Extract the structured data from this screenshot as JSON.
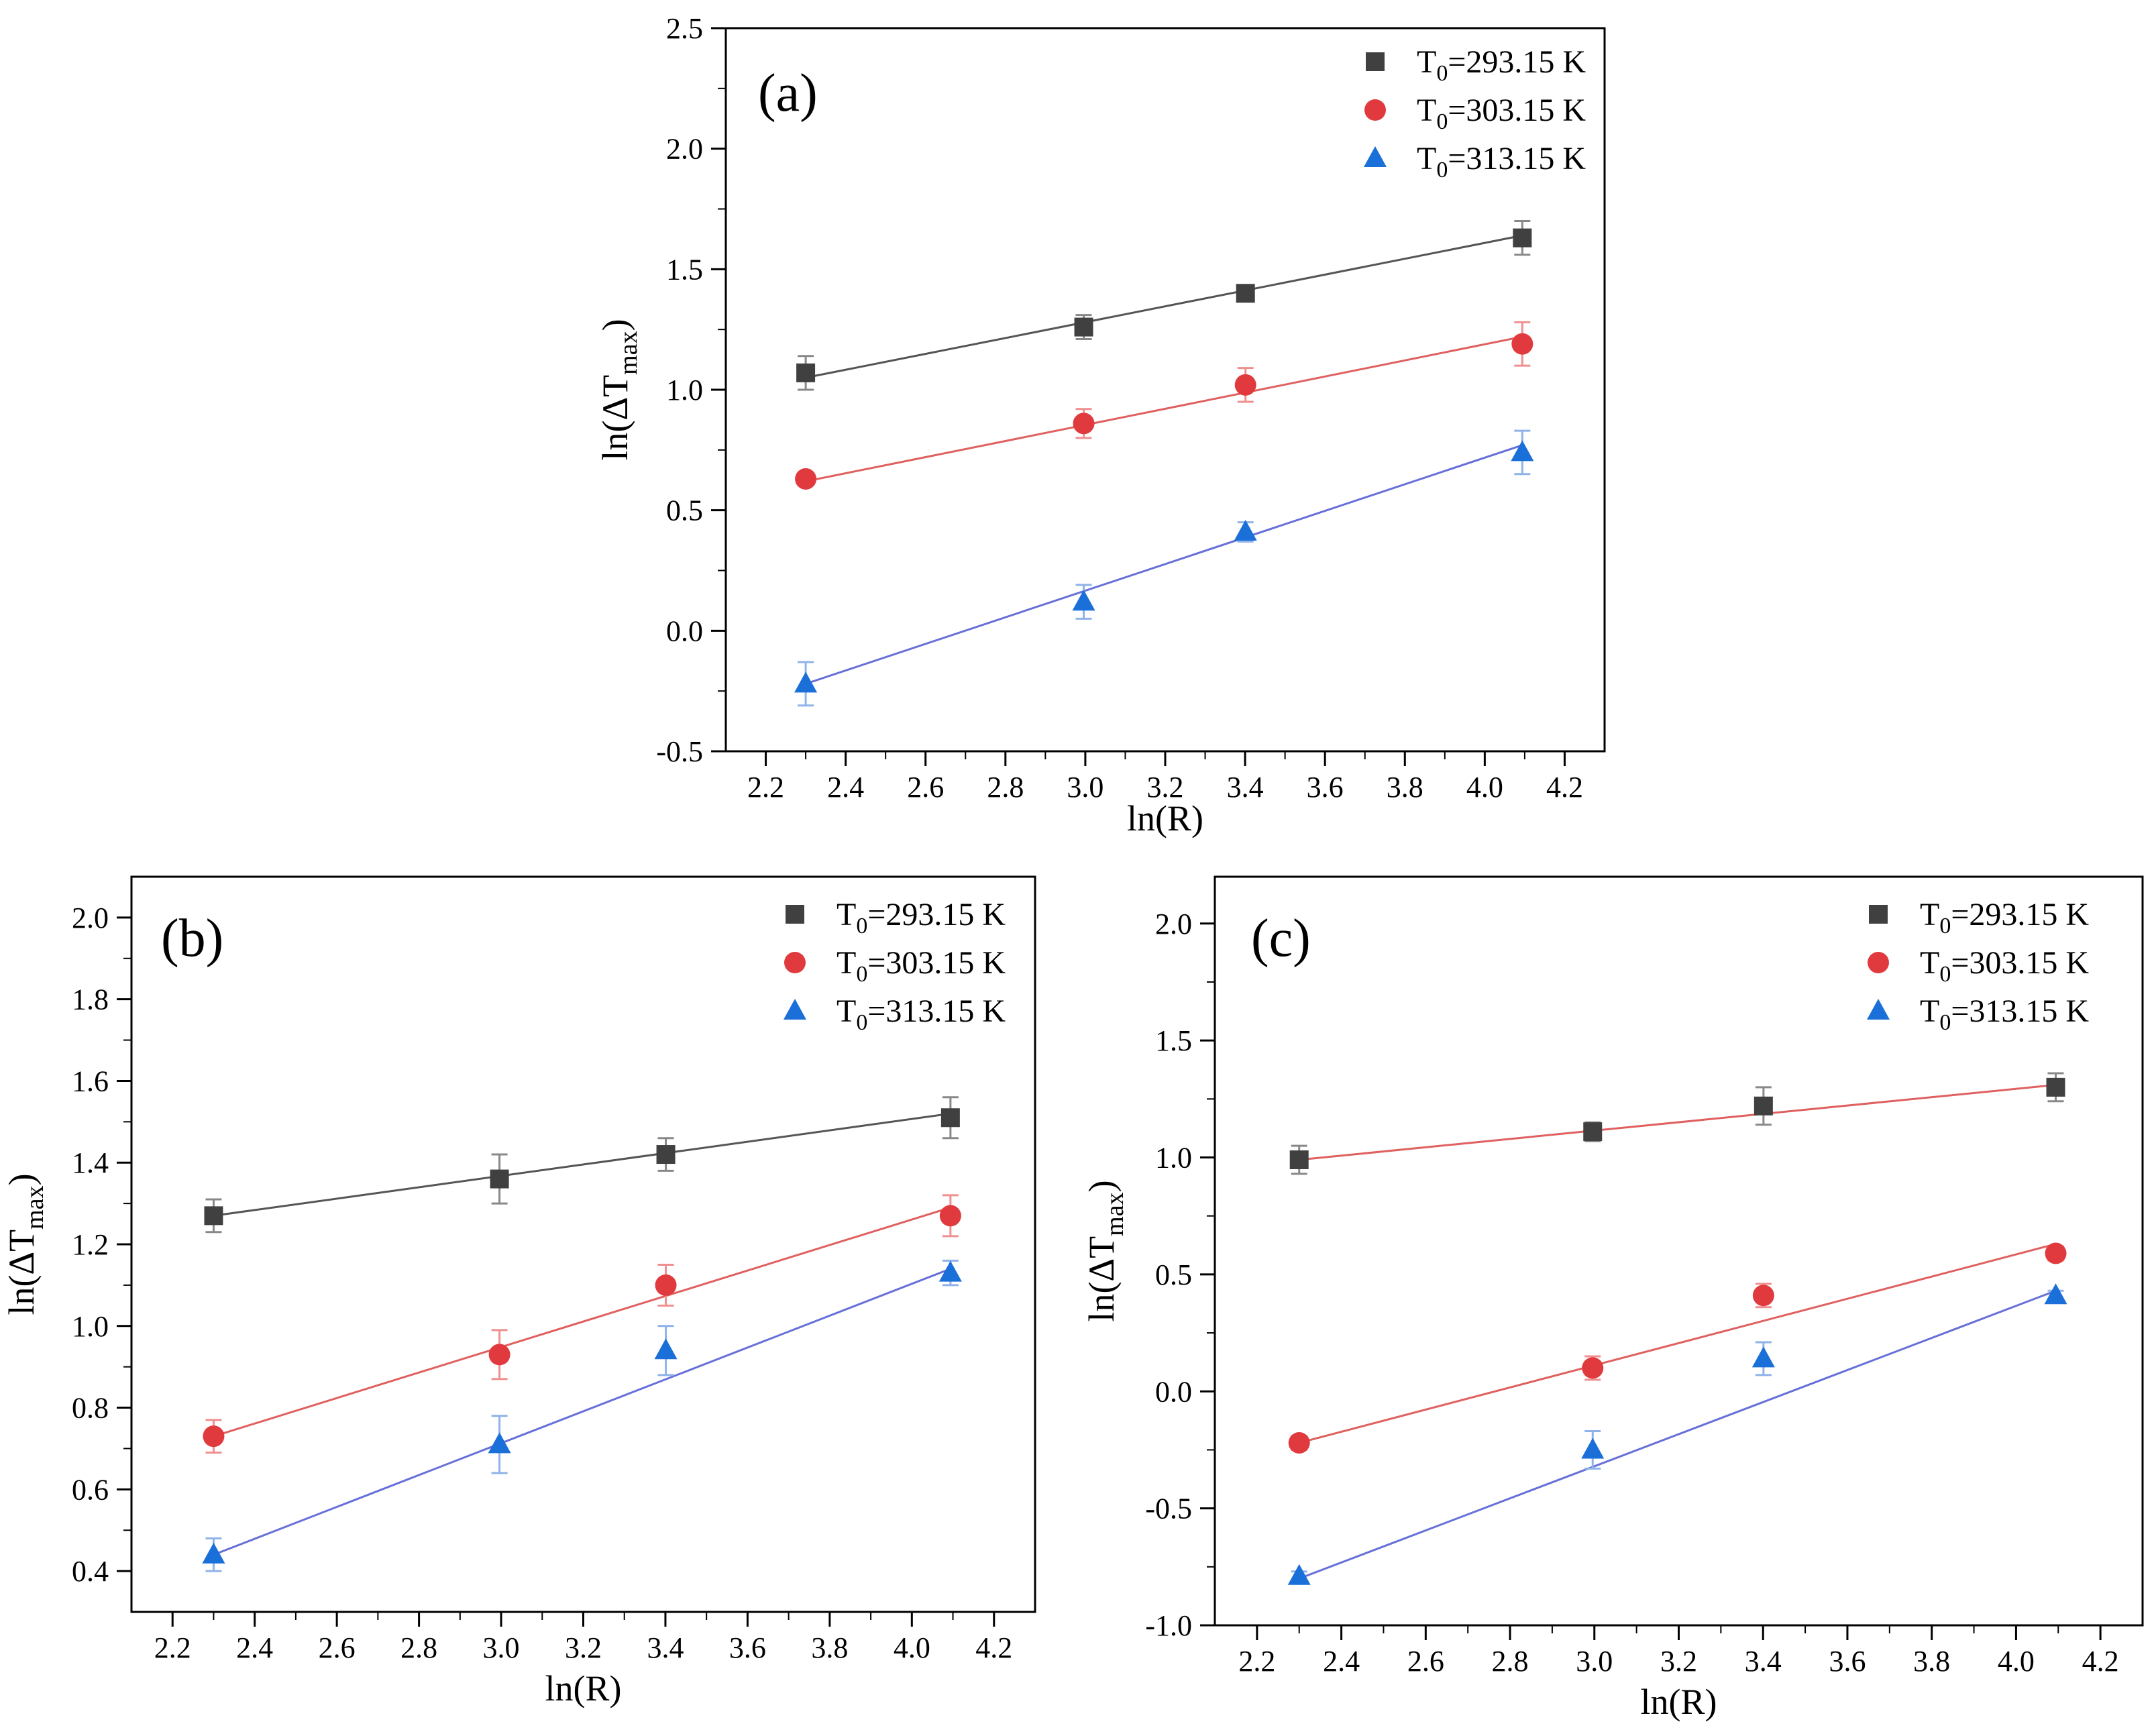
{
  "colors": {
    "series": [
      "#404040",
      "#e03a3e",
      "#1a6fd8"
    ],
    "fit": [
      "#555555",
      "#e06060",
      "#6670d8"
    ],
    "fit_c_first": "#e06060",
    "error_bar": [
      "#888888",
      "#f08f8f",
      "#8fb2e8"
    ]
  },
  "chart_data": [
    {
      "type": "scatter",
      "panel": "(a)",
      "xlabel": "ln(R)",
      "ylabel": "ln(ΔTmax)",
      "ylabel_main": "ln(ΔT",
      "ylabel_sub": "max",
      "ylabel_close": ")",
      "xlim": [
        2.1,
        4.3
      ],
      "ylim": [
        -0.5,
        2.5
      ],
      "xticks": [
        2.2,
        2.4,
        2.6,
        2.8,
        3.0,
        3.2,
        3.4,
        3.6,
        3.8,
        4.0,
        4.2
      ],
      "xtick_labels": [
        "2.2",
        "2.4",
        "2.6",
        "2.8",
        "3.0",
        "3.2",
        "3.4",
        "3.6",
        "3.8",
        "4.0",
        "4.2"
      ],
      "yticks": [
        -0.5,
        0.0,
        0.5,
        1.0,
        1.5,
        2.0,
        2.5
      ],
      "ytick_labels": [
        "-0.5",
        "0.0",
        "0.5",
        "1.0",
        "1.5",
        "2.0",
        "2.5"
      ],
      "x": [
        2.3,
        2.996,
        3.401,
        4.094
      ],
      "series": [
        {
          "name": "T0=293.15 K",
          "legend_main": "T",
          "legend_sub": "0",
          "legend_rest": "=293.15 K",
          "marker": "square",
          "values": [
            1.07,
            1.26,
            1.4,
            1.63
          ],
          "errors": [
            0.07,
            0.05,
            0.02,
            0.07
          ],
          "fit": [
            1.05,
            1.64
          ]
        },
        {
          "name": "T0=303.15 K",
          "legend_main": "T",
          "legend_sub": "0",
          "legend_rest": "=303.15 K",
          "marker": "circle",
          "values": [
            0.63,
            0.86,
            1.02,
            1.19
          ],
          "errors": [
            0.02,
            0.06,
            0.07,
            0.09
          ],
          "fit": [
            0.62,
            1.22
          ]
        },
        {
          "name": "T0=313.15 K",
          "legend_main": "T",
          "legend_sub": "0",
          "legend_rest": "=313.15 K",
          "marker": "triangle",
          "values": [
            -0.22,
            0.12,
            0.41,
            0.74
          ],
          "errors": [
            0.09,
            0.07,
            0.04,
            0.09
          ],
          "fit": [
            -0.22,
            0.77
          ]
        }
      ]
    },
    {
      "type": "scatter",
      "panel": "(b)",
      "xlabel": "ln(R)",
      "ylabel": "ln(ΔTmax)",
      "ylabel_main": "ln(ΔT",
      "ylabel_sub": "max",
      "ylabel_close": ")",
      "xlim": [
        2.1,
        4.3
      ],
      "ylim": [
        0.3,
        2.1
      ],
      "xticks": [
        2.2,
        2.4,
        2.6,
        2.8,
        3.0,
        3.2,
        3.4,
        3.6,
        3.8,
        4.0,
        4.2
      ],
      "xtick_labels": [
        "2.2",
        "2.4",
        "2.6",
        "2.8",
        "3.0",
        "3.2",
        "3.4",
        "3.6",
        "3.8",
        "4.0",
        "4.2"
      ],
      "yticks": [
        0.4,
        0.6,
        0.8,
        1.0,
        1.2,
        1.4,
        1.6,
        1.8,
        2.0
      ],
      "ytick_labels": [
        "0.4",
        "0.6",
        "0.8",
        "1.0",
        "1.2",
        "1.4",
        "1.6",
        "1.8",
        "2.0"
      ],
      "x": [
        2.3,
        2.996,
        3.401,
        4.094
      ],
      "series": [
        {
          "name": "T0=293.15 K",
          "legend_main": "T",
          "legend_sub": "0",
          "legend_rest": "=293.15 K",
          "marker": "square",
          "values": [
            1.27,
            1.36,
            1.42,
            1.51
          ],
          "errors": [
            0.04,
            0.06,
            0.04,
            0.05
          ],
          "fit": [
            1.27,
            1.52
          ]
        },
        {
          "name": "T0=303.15 K",
          "legend_main": "T",
          "legend_sub": "0",
          "legend_rest": "=303.15 K",
          "marker": "circle",
          "values": [
            0.73,
            0.93,
            1.1,
            1.27
          ],
          "errors": [
            0.04,
            0.06,
            0.05,
            0.05
          ],
          "fit": [
            0.73,
            1.29
          ]
        },
        {
          "name": "T0=313.15 K",
          "legend_main": "T",
          "legend_sub": "0",
          "legend_rest": "=313.15 K",
          "marker": "triangle",
          "values": [
            0.44,
            0.71,
            0.94,
            1.13
          ],
          "errors": [
            0.04,
            0.07,
            0.06,
            0.03
          ],
          "fit": [
            0.44,
            1.14
          ]
        }
      ]
    },
    {
      "type": "scatter",
      "panel": "(c)",
      "xlabel": "ln(R)",
      "ylabel": "ln(ΔTmax)",
      "ylabel_main": "ln(ΔT",
      "ylabel_sub": "max",
      "ylabel_close": ")",
      "xlim": [
        2.1,
        4.3
      ],
      "ylim": [
        -1.0,
        2.2
      ],
      "xticks": [
        2.2,
        2.4,
        2.6,
        2.8,
        3.0,
        3.2,
        3.4,
        3.6,
        3.8,
        4.0,
        4.2
      ],
      "xtick_labels": [
        "2.2",
        "2.4",
        "2.6",
        "2.8",
        "3.0",
        "3.2",
        "3.4",
        "3.6",
        "3.8",
        "4.0",
        "4.2"
      ],
      "yticks": [
        -1.0,
        -0.5,
        0.0,
        0.5,
        1.0,
        1.5,
        2.0
      ],
      "ytick_labels": [
        "-1.0",
        "-0.5",
        "0.0",
        "0.5",
        "1.0",
        "1.5",
        "2.0"
      ],
      "x": [
        2.3,
        2.996,
        3.401,
        4.094
      ],
      "series": [
        {
          "name": "T0=293.15 K",
          "legend_main": "T",
          "legend_sub": "0",
          "legend_rest": "=293.15 K",
          "marker": "square",
          "values": [
            0.99,
            1.11,
            1.22,
            1.3
          ],
          "errors": [
            0.06,
            0.04,
            0.08,
            0.06
          ],
          "fit": [
            0.99,
            1.31
          ]
        },
        {
          "name": "T0=303.15 K",
          "legend_main": "T",
          "legend_sub": "0",
          "legend_rest": "=303.15 K",
          "marker": "circle",
          "values": [
            -0.22,
            0.1,
            0.41,
            0.59
          ],
          "errors": [
            0.03,
            0.05,
            0.05,
            0.03
          ],
          "fit": [
            -0.22,
            0.63
          ]
        },
        {
          "name": "T0=313.15 K",
          "legend_main": "T",
          "legend_sub": "0",
          "legend_rest": "=313.15 K",
          "marker": "triangle",
          "values": [
            -0.79,
            -0.25,
            0.14,
            0.41
          ],
          "errors": [
            0.02,
            0.08,
            0.07,
            0.02
          ],
          "fit": [
            -0.8,
            0.43
          ]
        }
      ]
    }
  ]
}
